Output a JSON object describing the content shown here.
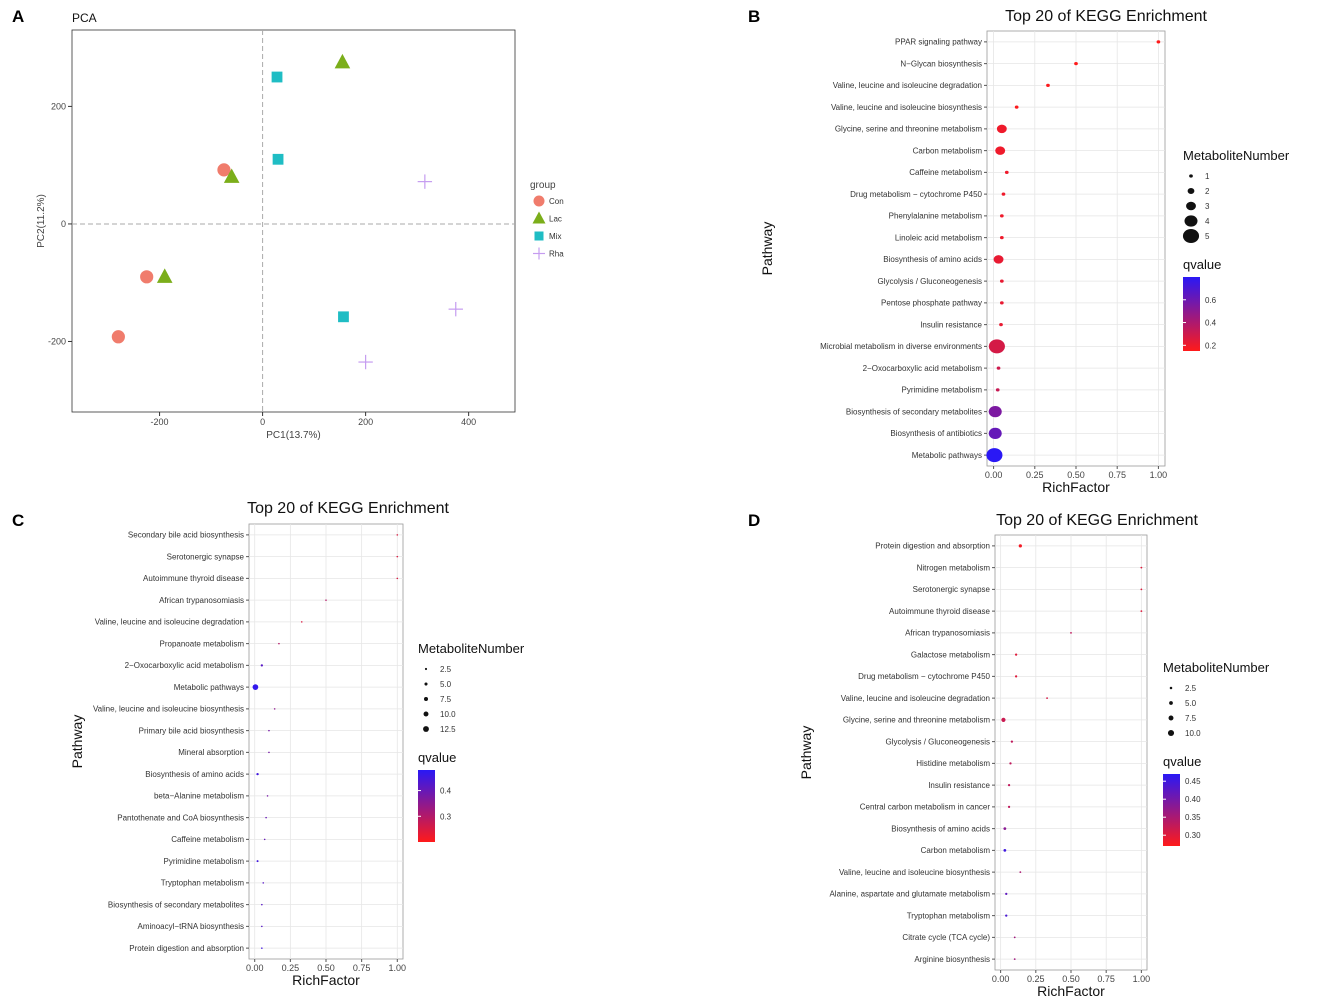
{
  "panels": [
    {
      "letter": "A"
    },
    {
      "letter": "B"
    },
    {
      "letter": "C"
    },
    {
      "letter": "D"
    }
  ],
  "chart_data": [
    {
      "panel": "A",
      "type": "scatter",
      "title": "PCA",
      "xlabel": "PC1(13.7%)",
      "ylabel": "PC2(11.2%)",
      "xlim": [
        -370,
        490
      ],
      "ylim": [
        -320,
        330
      ],
      "xticks": [
        -200,
        0,
        200,
        400
      ],
      "yticks": [
        -200,
        0,
        200
      ],
      "legend_title": "group",
      "series": [
        {
          "name": "Con",
          "color": "#F07C6C",
          "shape": "circle",
          "points": [
            [
              -75,
              92
            ],
            [
              -225,
              -90
            ],
            [
              -280,
              -192
            ]
          ]
        },
        {
          "name": "Lac",
          "color": "#7BAE1A",
          "shape": "triangle",
          "points": [
            [
              155,
              275
            ],
            [
              -60,
              80
            ],
            [
              -190,
              -90
            ]
          ]
        },
        {
          "name": "Mix",
          "color": "#1FBDC4",
          "shape": "square",
          "points": [
            [
              28,
              250
            ],
            [
              30,
              110
            ],
            [
              157,
              -158
            ]
          ]
        },
        {
          "name": "Rha",
          "color": "#C59CF0",
          "shape": "plus",
          "points": [
            [
              315,
              72
            ],
            [
              375,
              -145
            ],
            [
              200,
              -235
            ]
          ]
        }
      ]
    },
    {
      "panel": "B",
      "type": "scatter",
      "title": "Top 20 of KEGG Enrichment",
      "xlabel": "RichFactor",
      "ylabel": "Pathway",
      "xlim": [
        -0.04,
        1.04
      ],
      "xticks": [
        "0.00",
        "0.25",
        "0.50",
        "0.75",
        "1.00"
      ],
      "size_legend_title": "MetaboliteNumber",
      "size_legend": [
        "1",
        "2",
        "3",
        "4",
        "5"
      ],
      "size_range": [
        1,
        5
      ],
      "color_legend_title": "qvalue",
      "color_legend": [
        "0.6",
        "0.4",
        "0.2"
      ],
      "color_range": [
        0.15,
        0.8
      ],
      "pathways": [
        "PPAR signaling pathway",
        "N−Glycan biosynthesis",
        "Valine, leucine and isoleucine degradation",
        "Valine, leucine and isoleucine biosynthesis",
        "Glycine, serine and threonine metabolism",
        "Carbon metabolism",
        "Caffeine metabolism",
        "Drug metabolism − cytochrome P450",
        "Phenylalanine metabolism",
        "Linoleic acid metabolism",
        "Biosynthesis of amino acids",
        "Glycolysis / Gluconeogenesis",
        "Pentose phosphate pathway",
        "Insulin resistance",
        "Microbial metabolism in diverse environments",
        "2−Oxocarboxylic acid metabolism",
        "Pyrimidine metabolism",
        "Biosynthesis of secondary metabolites",
        "Biosynthesis of antibiotics",
        "Metabolic pathways"
      ],
      "rich_factor": [
        1.0,
        0.5,
        0.33,
        0.14,
        0.05,
        0.04,
        0.08,
        0.06,
        0.05,
        0.05,
        0.03,
        0.05,
        0.05,
        0.045,
        0.02,
        0.03,
        0.025,
        0.01,
        0.01,
        0.005
      ],
      "metabolite_number": [
        1,
        1,
        1,
        1,
        3,
        3,
        1,
        1,
        1,
        1,
        3,
        1,
        1,
        1,
        5,
        1,
        1,
        4,
        4,
        5
      ],
      "qvalue": [
        0.15,
        0.15,
        0.16,
        0.16,
        0.2,
        0.2,
        0.2,
        0.2,
        0.2,
        0.2,
        0.22,
        0.22,
        0.22,
        0.22,
        0.28,
        0.3,
        0.32,
        0.55,
        0.62,
        0.8
      ]
    },
    {
      "panel": "C",
      "type": "scatter",
      "title": "Top 20 of KEGG Enrichment",
      "xlabel": "RichFactor",
      "ylabel": "Pathway",
      "xlim": [
        -0.04,
        1.04
      ],
      "xticks": [
        "0.00",
        "0.25",
        "0.50",
        "0.75",
        "1.00"
      ],
      "size_legend_title": "MetaboliteNumber",
      "size_legend": [
        "2.5",
        "5.0",
        "7.5",
        "10.0",
        "12.5"
      ],
      "size_range": [
        1,
        14
      ],
      "color_legend_title": "qvalue",
      "color_legend": [
        "0.4",
        "0.3"
      ],
      "color_range": [
        0.2,
        0.48
      ],
      "pathways": [
        "Secondary bile acid biosynthesis",
        "Serotonergic synapse",
        "Autoimmune thyroid disease",
        "African trypanosomiasis",
        "Valine, leucine and isoleucine degradation",
        "Propanoate metabolism",
        "2−Oxocarboxylic acid metabolism",
        "Metabolic pathways",
        "Valine, leucine and isoleucine biosynthesis",
        "Primary bile acid biosynthesis",
        "Mineral absorption",
        "Biosynthesis of amino acids",
        "beta−Alanine metabolism",
        "Pantothenate and CoA biosynthesis",
        "Caffeine metabolism",
        "Pyrimidine metabolism",
        "Tryptophan metabolism",
        "Biosynthesis of secondary metabolites",
        "Aminoacyl−tRNA biosynthesis",
        "Protein digestion and absorption"
      ],
      "rich_factor": [
        1.0,
        1.0,
        1.0,
        0.5,
        0.33,
        0.17,
        0.05,
        0.005,
        0.14,
        0.1,
        0.1,
        0.02,
        0.09,
        0.08,
        0.07,
        0.02,
        0.06,
        0.05,
        0.05,
        0.05
      ],
      "metabolite_number": [
        1,
        1,
        1,
        1,
        1,
        1,
        3,
        12,
        1,
        1,
        1,
        3,
        1,
        1,
        1,
        2,
        1,
        1,
        1,
        1
      ],
      "qvalue": [
        0.25,
        0.25,
        0.25,
        0.3,
        0.25,
        0.3,
        0.42,
        0.47,
        0.35,
        0.38,
        0.38,
        0.45,
        0.38,
        0.4,
        0.4,
        0.45,
        0.42,
        0.42,
        0.42,
        0.45
      ]
    },
    {
      "panel": "D",
      "type": "scatter",
      "title": "Top 20 of KEGG Enrichment",
      "xlabel": "RichFactor",
      "ylabel": "Pathway",
      "xlim": [
        -0.04,
        1.04
      ],
      "xticks": [
        "0.00",
        "0.25",
        "0.50",
        "0.75",
        "1.00"
      ],
      "size_legend_title": "MetaboliteNumber",
      "size_legend": [
        "2.5",
        "5.0",
        "7.5",
        "10.0"
      ],
      "size_range": [
        1,
        11
      ],
      "color_legend_title": "qvalue",
      "color_legend": [
        "0.45",
        "0.40",
        "0.35",
        "0.30"
      ],
      "color_range": [
        0.27,
        0.47
      ],
      "pathways": [
        "Protein digestion and absorption",
        "Nitrogen metabolism",
        "Serotonergic synapse",
        "Autoimmune thyroid disease",
        "African trypanosomiasis",
        "Galactose metabolism",
        "Drug metabolism − cytochrome P450",
        "Valine, leucine and isoleucine degradation",
        "Glycine, serine and threonine metabolism",
        "Glycolysis / Gluconeogenesis",
        "Histidine metabolism",
        "Insulin resistance",
        "Central carbon metabolism in cancer",
        "Biosynthesis of amino acids",
        "Carbon metabolism",
        "Valine, leucine and isoleucine biosynthesis",
        "Alanine, aspartate and glutamate metabolism",
        "Tryptophan metabolism",
        "Citrate cycle (TCA cycle)",
        "Arginine biosynthesis"
      ],
      "rich_factor": [
        0.14,
        1.0,
        1.0,
        1.0,
        0.5,
        0.11,
        0.11,
        0.33,
        0.02,
        0.08,
        0.07,
        0.06,
        0.06,
        0.03,
        0.03,
        0.14,
        0.04,
        0.04,
        0.1,
        0.1
      ],
      "metabolite_number": [
        4,
        1,
        1,
        1,
        1,
        2,
        2,
        1,
        6,
        2,
        2,
        2,
        2,
        3,
        3,
        1,
        2,
        2,
        1,
        1
      ],
      "qvalue": [
        0.28,
        0.3,
        0.3,
        0.3,
        0.33,
        0.3,
        0.3,
        0.31,
        0.32,
        0.33,
        0.33,
        0.33,
        0.33,
        0.38,
        0.45,
        0.35,
        0.42,
        0.44,
        0.36,
        0.36
      ]
    }
  ]
}
